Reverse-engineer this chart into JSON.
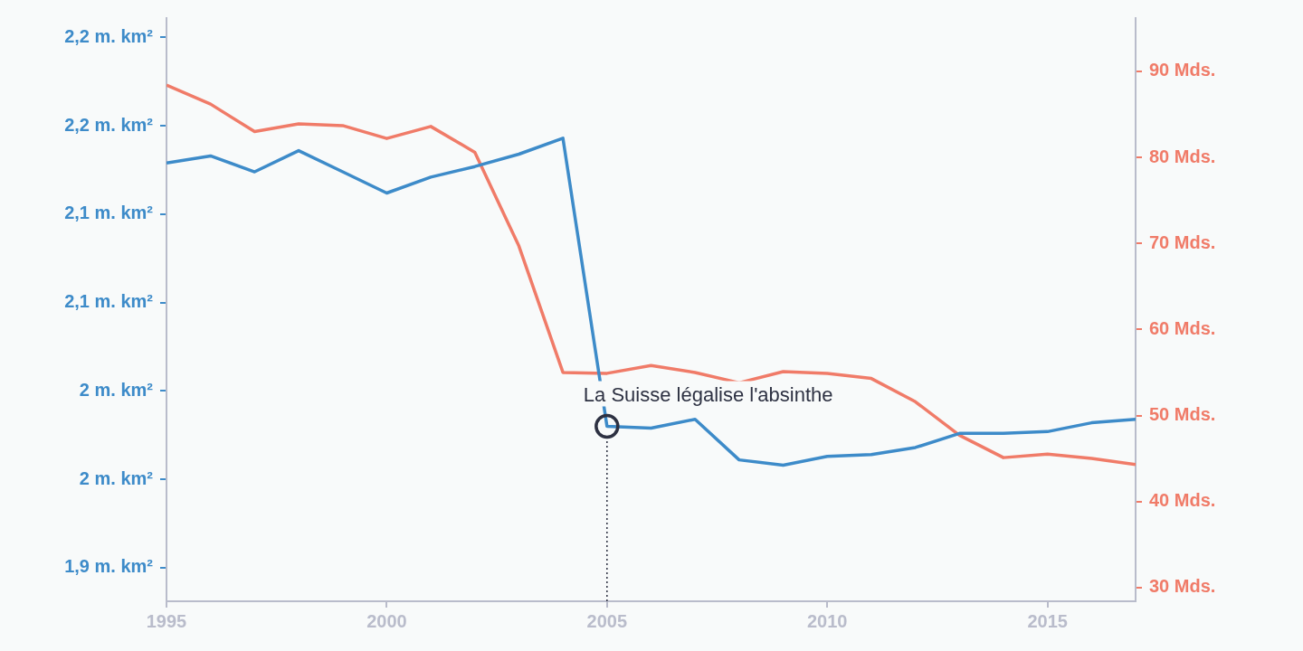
{
  "chart_data": {
    "type": "line",
    "x": [
      1995,
      1996,
      1997,
      1998,
      1999,
      2000,
      2001,
      2002,
      2003,
      2004,
      2005,
      2006,
      2007,
      2008,
      2009,
      2010,
      2011,
      2012,
      2013,
      2014,
      2015,
      2016,
      2017
    ],
    "series": [
      {
        "color": "#3d8bc9",
        "values": [
          2.169,
          2.173,
          2.164,
          2.176,
          2.164,
          2.152,
          2.161,
          2.167,
          2.174,
          2.183,
          2.02,
          2.019,
          2.024,
          2.001,
          1.998,
          2.003,
          2.004,
          2.008,
          2.016,
          2.016,
          2.017,
          2.022,
          2.024
        ]
      },
      {
        "color": "#f07b68",
        "axis": "y2",
        "values": [
          88.4,
          86.2,
          83.0,
          83.9,
          83.7,
          82.2,
          83.6,
          80.6,
          69.7,
          55.0,
          54.9,
          55.8,
          55.0,
          53.8,
          55.1,
          54.9,
          54.3,
          51.6,
          47.7,
          45.1,
          45.5,
          45.0,
          44.3
        ]
      }
    ],
    "xlim": [
      1995,
      2017
    ],
    "xticks": [
      1995,
      2000,
      2005,
      2010,
      2015
    ],
    "ylim": [
      1.921,
      2.251
    ],
    "yticks": [
      {
        "value": 1.94,
        "label": "1,9 m. km²"
      },
      {
        "value": 1.99,
        "label": "2 m. km²"
      },
      {
        "value": 2.04,
        "label": "2 m. km²"
      },
      {
        "value": 2.09,
        "label": "2,1 m. km²"
      },
      {
        "value": 2.14,
        "label": "2,1 m. km²"
      },
      {
        "value": 2.19,
        "label": "2,2 m. km²"
      },
      {
        "value": 2.24,
        "label": "2,2 m. km²"
      }
    ],
    "y2lim": [
      28.4,
      96.2
    ],
    "y2ticks": [
      {
        "value": 30,
        "label": "30 Mds."
      },
      {
        "value": 40,
        "label": "40 Mds."
      },
      {
        "value": 50,
        "label": "50 Mds."
      },
      {
        "value": 60,
        "label": "60 Mds."
      },
      {
        "value": 70,
        "label": "70 Mds."
      },
      {
        "value": 80,
        "label": "80 Mds."
      },
      {
        "value": 90,
        "label": "90 Mds."
      }
    ],
    "annotations": [
      {
        "text": "La Suisse légalise l'absinthe",
        "x": 2005,
        "y": 2.02
      }
    ],
    "ref_lines": [
      {
        "axis": "x",
        "value": 2005,
        "color": "#2d3142",
        "line_style": "dotted"
      }
    ],
    "legend": false
  }
}
